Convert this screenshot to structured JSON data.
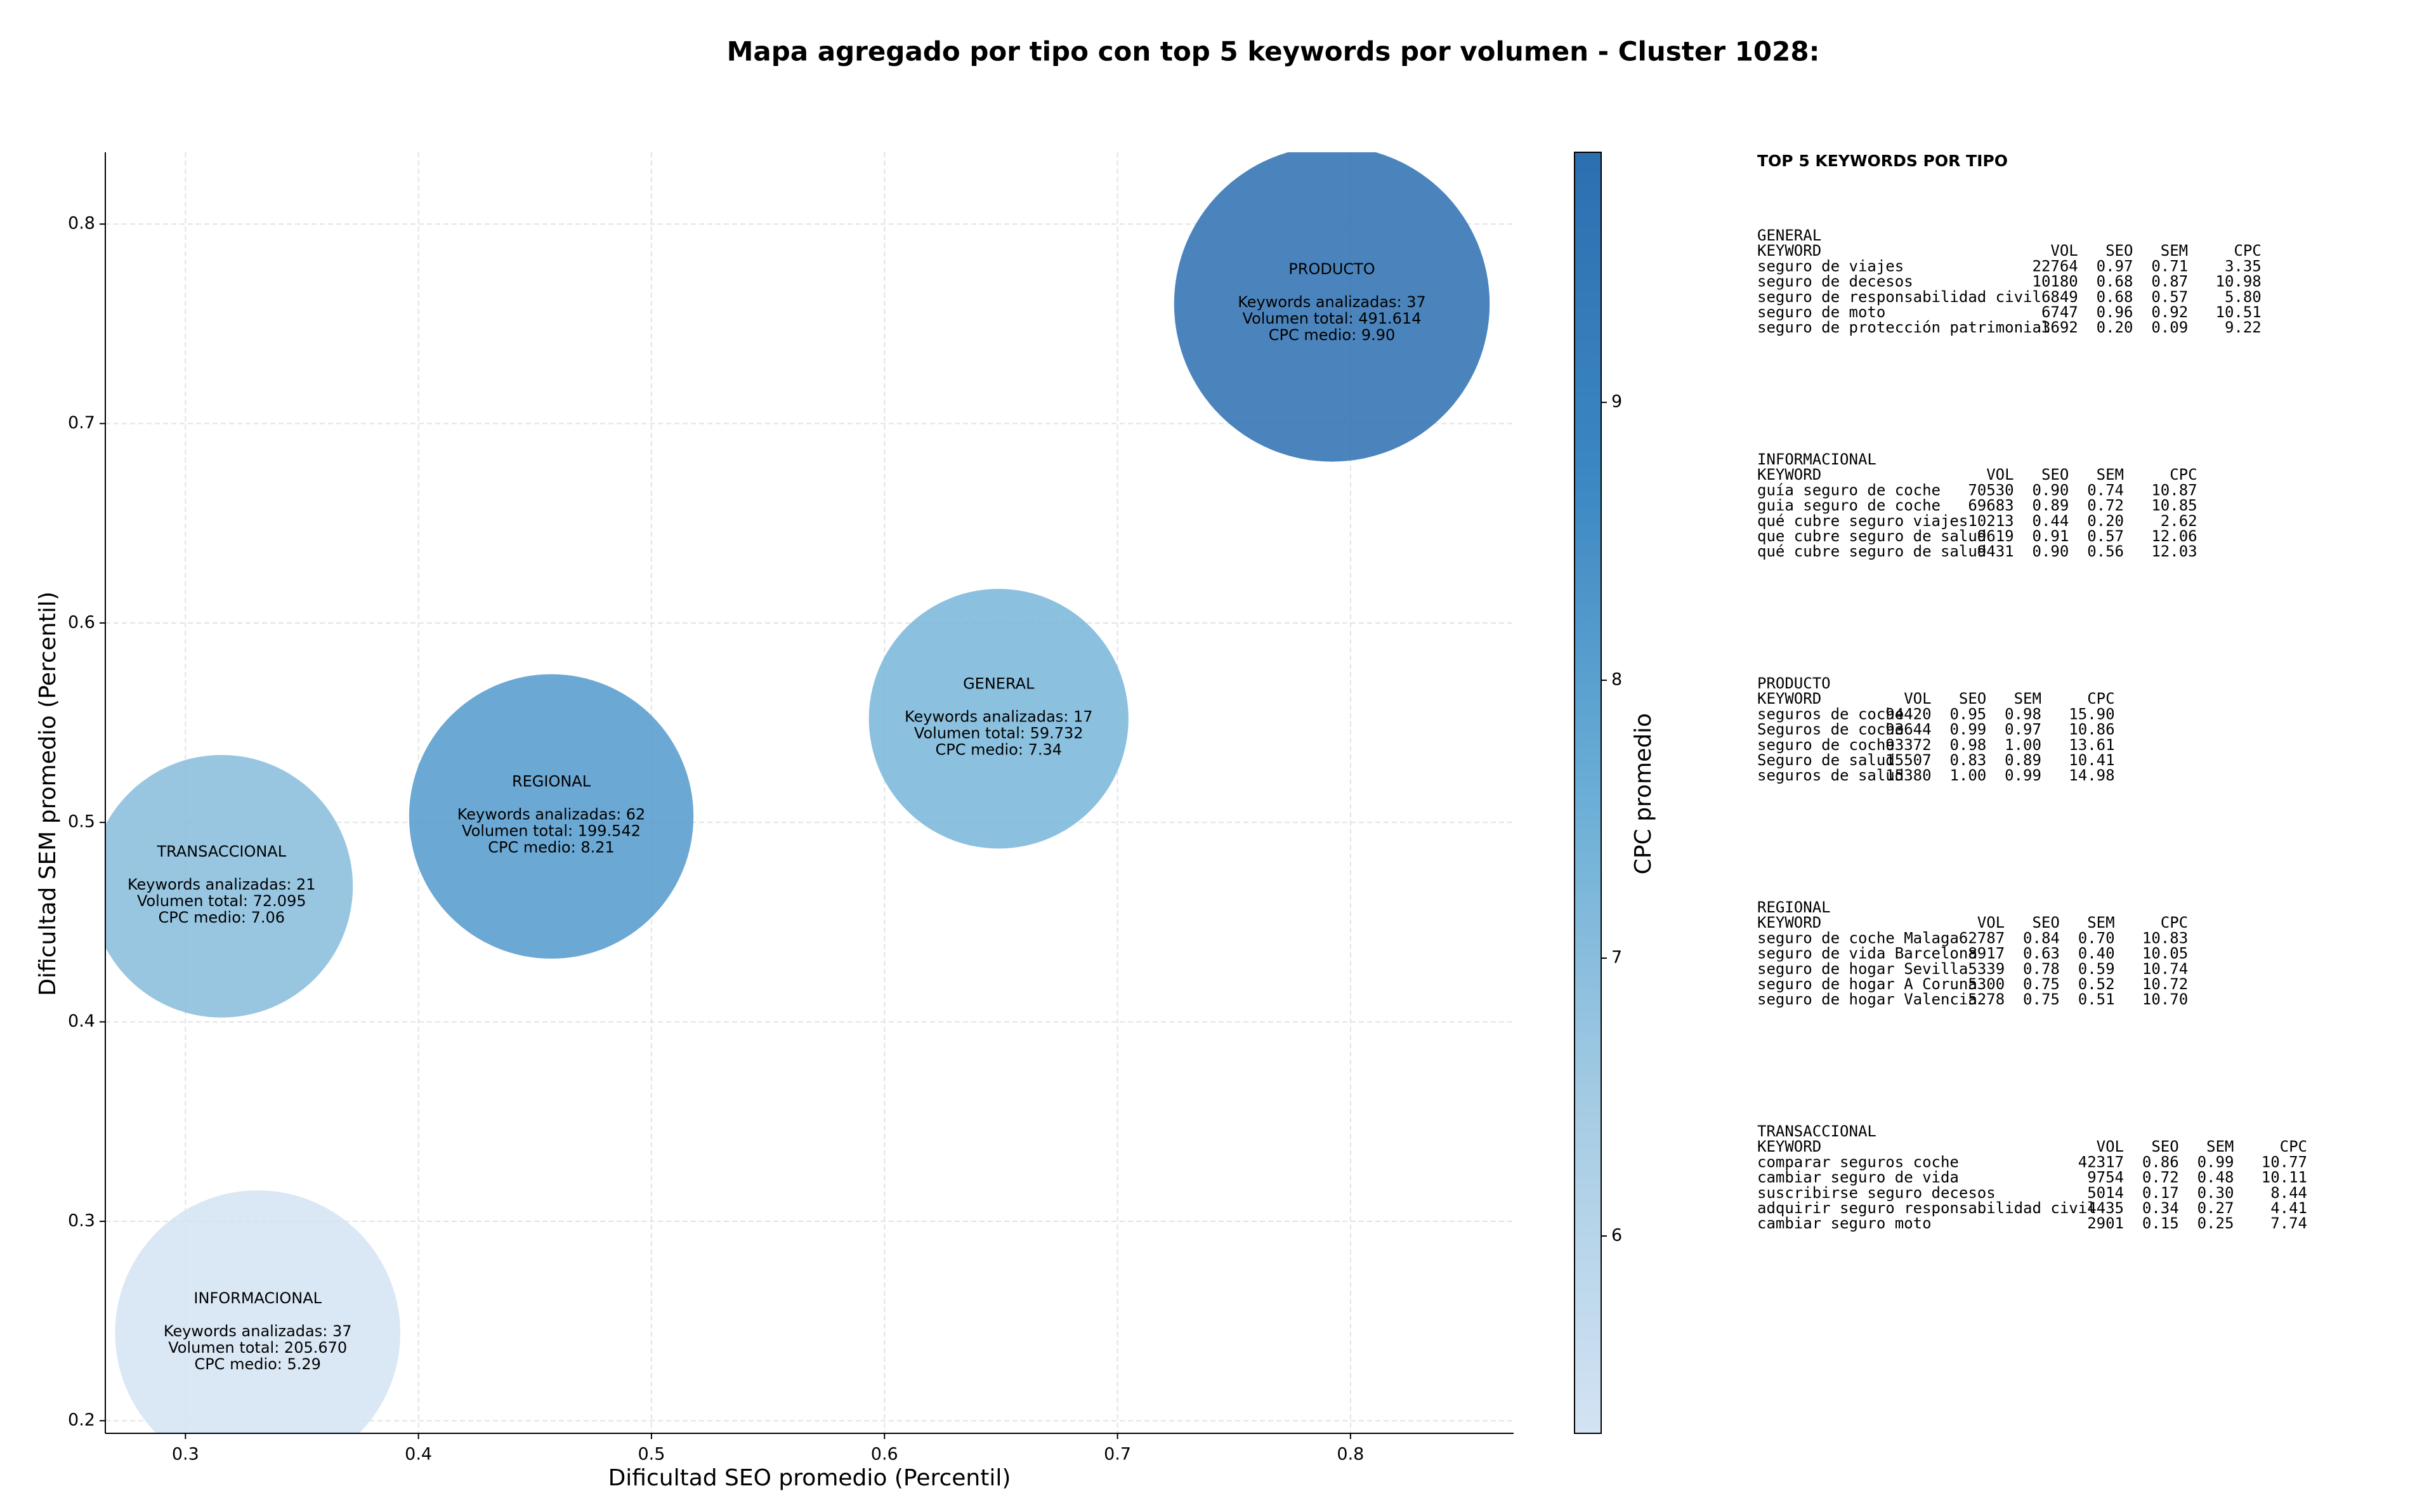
{
  "chart_data": {
    "type": "bubble",
    "title": "Mapa agregado por tipo con top 5 keywords por volumen - Cluster 1028:",
    "xlabel": "Dificultad SEO promedio (Percentil)",
    "ylabel": "Dificultad SEM promedio (Percentil)",
    "xlim": [
      0.2656,
      0.87
    ],
    "ylim": [
      0.1937,
      0.836
    ],
    "xticks": [
      0.3,
      0.4,
      0.5,
      0.6,
      0.7,
      0.8
    ],
    "yticks": [
      0.2,
      0.3,
      0.4,
      0.5,
      0.6,
      0.7,
      0.8
    ],
    "grid": true,
    "colorbar": {
      "label": "CPC promedio",
      "lim": [
        5.29,
        9.9
      ],
      "ticks": [
        6,
        7,
        8,
        9
      ],
      "colors": [
        "#d3e3f3",
        "#a6cce4",
        "#6aaed6",
        "#3b87c2",
        "#2c6fb0"
      ]
    },
    "points": [
      {
        "name": "PRODUCTO",
        "x": 0.792,
        "y": 0.76,
        "volume": 491614,
        "cpc": 9.9,
        "annotation": [
          "Keywords analizadas: 37",
          "Volumen total: 491.614",
          "CPC medio: 9.90"
        ]
      },
      {
        "name": "GENERAL",
        "x": 0.649,
        "y": 0.552,
        "volume": 59732,
        "cpc": 7.34,
        "annotation": [
          "Keywords analizadas: 17",
          "Volumen total: 59.732",
          "CPC medio: 7.34"
        ]
      },
      {
        "name": "REGIONAL",
        "x": 0.457,
        "y": 0.503,
        "volume": 199542,
        "cpc": 8.21,
        "annotation": [
          "Keywords analizadas: 62",
          "Volumen total: 199.542",
          "CPC medio: 8.21"
        ]
      },
      {
        "name": "TRANSACCIONAL",
        "x": 0.3155,
        "y": 0.468,
        "volume": 72095,
        "cpc": 7.06,
        "annotation": [
          "Keywords analizadas: 21",
          "Volumen total: 72.095",
          "CPC medio: 7.06"
        ]
      },
      {
        "name": "INFORMACIONAL",
        "x": 0.331,
        "y": 0.244,
        "volume": 205670,
        "cpc": 5.29,
        "annotation": [
          "Keywords analizadas: 37",
          "Volumen total: 205.670",
          "CPC medio: 5.29"
        ]
      }
    ]
  },
  "side_panel": {
    "title": "TOP 5 KEYWORDS POR TIPO",
    "groups": [
      {
        "name": "GENERAL",
        "header": [
          "KEYWORD",
          "VOL",
          "SEO",
          "SEM",
          "CPC"
        ],
        "rows": [
          [
            "seguro de viajes",
            "22764",
            "0.97",
            "0.71",
            "3.35"
          ],
          [
            "seguro de decesos",
            "10180",
            "0.68",
            "0.87",
            "10.98"
          ],
          [
            "seguro de responsabilidad civil",
            "6849",
            "0.68",
            "0.57",
            "5.80"
          ],
          [
            "seguro de moto",
            "6747",
            "0.96",
            "0.92",
            "10.51"
          ],
          [
            "seguro de protección patrimonial",
            "3692",
            "0.20",
            "0.09",
            "9.22"
          ]
        ]
      },
      {
        "name": "INFORMACIONAL",
        "header": [
          "KEYWORD",
          "VOL",
          "SEO",
          "SEM",
          "CPC"
        ],
        "rows": [
          [
            "guía seguro de coche",
            "70530",
            "0.90",
            "0.74",
            "10.87"
          ],
          [
            "guia seguro de coche",
            "69683",
            "0.89",
            "0.72",
            "10.85"
          ],
          [
            "qué cubre seguro viajes",
            "10213",
            "0.44",
            "0.20",
            "2.62"
          ],
          [
            "que cubre seguro de salud",
            "9619",
            "0.91",
            "0.57",
            "12.06"
          ],
          [
            "qué cubre seguro de salud",
            "9431",
            "0.90",
            "0.56",
            "12.03"
          ]
        ]
      },
      {
        "name": "PRODUCTO",
        "header": [
          "KEYWORD",
          "VOL",
          "SEO",
          "SEM",
          "CPC"
        ],
        "rows": [
          [
            "seguros de coche",
            "94420",
            "0.95",
            "0.98",
            "15.90"
          ],
          [
            "Seguros de coche",
            "93644",
            "0.99",
            "0.97",
            "10.86"
          ],
          [
            "seguro de coche",
            "93372",
            "0.98",
            "1.00",
            "13.61"
          ],
          [
            "Seguro de salud",
            "15507",
            "0.83",
            "0.89",
            "10.41"
          ],
          [
            "seguros de salud",
            "15380",
            "1.00",
            "0.99",
            "14.98"
          ]
        ]
      },
      {
        "name": "REGIONAL",
        "header": [
          "KEYWORD",
          "VOL",
          "SEO",
          "SEM",
          "CPC"
        ],
        "rows": [
          [
            "seguro de coche Malaga",
            "62787",
            "0.84",
            "0.70",
            "10.83"
          ],
          [
            "seguro de vida Barcelona",
            "8917",
            "0.63",
            "0.40",
            "10.05"
          ],
          [
            "seguro de hogar Sevilla",
            "5339",
            "0.78",
            "0.59",
            "10.74"
          ],
          [
            "seguro de hogar A Coruna",
            "5300",
            "0.75",
            "0.52",
            "10.72"
          ],
          [
            "seguro de hogar Valencia",
            "5278",
            "0.75",
            "0.51",
            "10.70"
          ]
        ]
      },
      {
        "name": "TRANSACCIONAL",
        "header": [
          "KEYWORD",
          "VOL",
          "SEO",
          "SEM",
          "CPC"
        ],
        "rows": [
          [
            "comparar seguros coche",
            "42317",
            "0.86",
            "0.99",
            "10.77"
          ],
          [
            "cambiar seguro de vida",
            "9754",
            "0.72",
            "0.48",
            "10.11"
          ],
          [
            "suscribirse seguro decesos",
            "5014",
            "0.17",
            "0.30",
            "8.44"
          ],
          [
            "adquirir seguro responsabilidad civil",
            "4435",
            "0.34",
            "0.27",
            "4.41"
          ],
          [
            "cambiar seguro moto",
            "2901",
            "0.15",
            "0.25",
            "7.74"
          ]
        ]
      }
    ]
  }
}
